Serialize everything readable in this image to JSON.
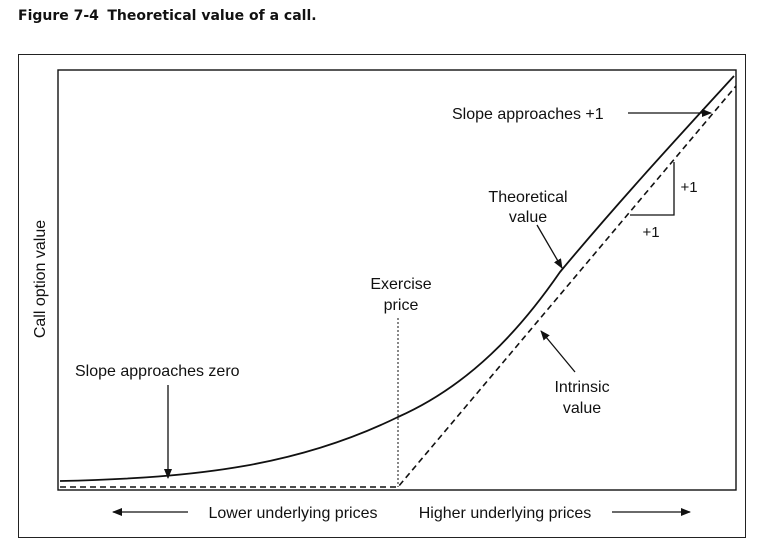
{
  "caption": {
    "number": "Figure 7-4",
    "title": "Theoretical value of a call."
  },
  "axes": {
    "y_label": "Call option value",
    "x_left_label": "Lower underlying prices",
    "x_right_label": "Higher underlying prices"
  },
  "annotations": {
    "slope_top": "Slope approaches +1",
    "theoretical_line1": "Theoretical",
    "theoretical_line2": "value",
    "exercise_line1": "Exercise",
    "exercise_line2": "price",
    "slope_bottom": "Slope approaches zero",
    "intrinsic_line1": "Intrinsic",
    "intrinsic_line2": "value",
    "rise": "+1",
    "run": "+1"
  }
}
